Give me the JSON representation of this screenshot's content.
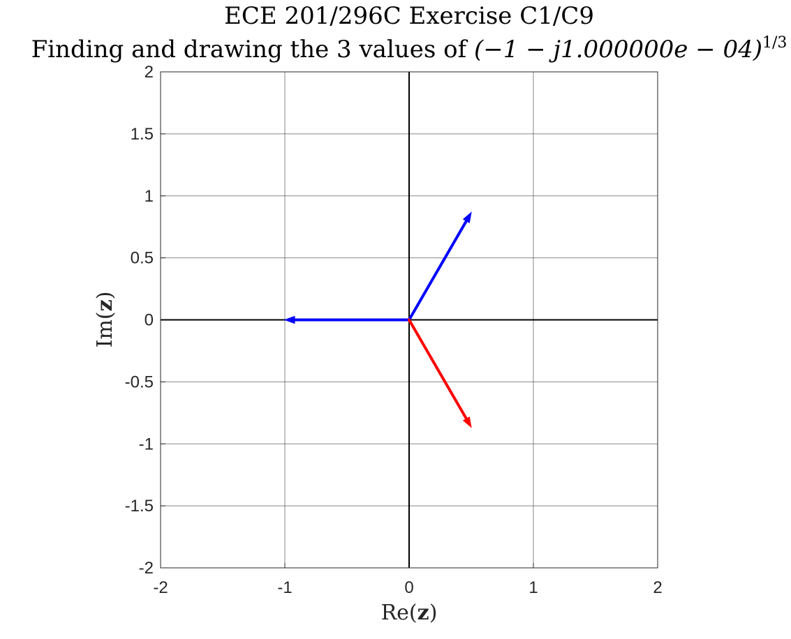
{
  "chart_data": {
    "type": "vector",
    "title": "ECE 201/296C Exercise C1/C9",
    "subtitle_prefix": "Finding and drawing the 3 values of ",
    "subtitle_math": "(−1 − j1.000000e − 04)",
    "subtitle_exponent": "1/3",
    "xlabel": {
      "pre": "Re(",
      "bold": "z",
      "post": ")"
    },
    "ylabel": {
      "pre": "Im(",
      "bold": "z",
      "post": ")"
    },
    "xlim": [
      -2,
      2
    ],
    "ylim": [
      -2,
      2
    ],
    "grid": true,
    "x_ticks": [
      -2,
      -1,
      0,
      1,
      2
    ],
    "x_tick_labels": [
      "-2",
      "-1",
      "0",
      "1",
      "2"
    ],
    "y_ticks": [
      2,
      1.5,
      1,
      0.5,
      0,
      -0.5,
      -1,
      -1.5,
      -2
    ],
    "y_tick_labels": [
      "2",
      "1.5",
      "1",
      "0.5",
      "0",
      "-0.5",
      "-1",
      "-1.5",
      "-2"
    ],
    "series": [
      {
        "x": [
          0,
          0.5
        ],
        "y": [
          0,
          0.866
        ],
        "color": "#0000ff"
      },
      {
        "x": [
          0,
          -1.0
        ],
        "y": [
          0,
          0.0
        ],
        "color": "#0000ff"
      },
      {
        "x": [
          0,
          0.5
        ],
        "y": [
          0,
          -0.866
        ],
        "color": "#ff0000"
      }
    ]
  }
}
